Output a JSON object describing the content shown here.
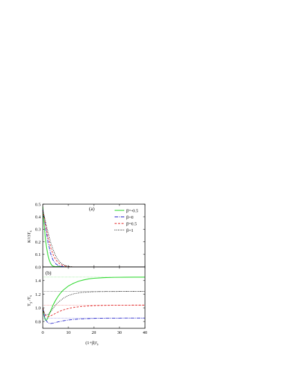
{
  "chart_data": [
    {
      "type": "line",
      "panel_label": "(a)",
      "ylabel": "K²/3T",
      "ylabel_sub": "s",
      "xlim": [
        0,
        40
      ],
      "ylim": [
        0,
        0.5
      ],
      "xticks": [
        0,
        10,
        20,
        30,
        40
      ],
      "yticks": [
        "0.0",
        "0.1",
        "0.2",
        "0.3",
        "0.4",
        "0.5"
      ],
      "legend_position": "top-right",
      "series": [
        {
          "name": "β=-0.5",
          "color": "#2ed92e",
          "dash": "",
          "x": [
            0,
            0.5,
            1,
            1.5,
            2,
            2.5,
            3,
            3.5,
            4,
            5,
            6,
            7,
            8,
            10,
            40
          ],
          "y": [
            0.48,
            0.34,
            0.23,
            0.15,
            0.095,
            0.055,
            0.03,
            0.014,
            0.006,
            0.002,
            0.004,
            0.003,
            0.001,
            0,
            0
          ]
        },
        {
          "name": "β=0",
          "color": "#1f1fc8",
          "dash": "5,1.5,1,1.5",
          "x": [
            0,
            0.5,
            1,
            1.5,
            2,
            3,
            4,
            5,
            6,
            7,
            8,
            9,
            10,
            12,
            40
          ],
          "y": [
            0.46,
            0.4,
            0.33,
            0.26,
            0.2,
            0.11,
            0.055,
            0.026,
            0.012,
            0.006,
            0.003,
            0.001,
            0,
            0,
            0
          ]
        },
        {
          "name": "β=0.5",
          "color": "#e02020",
          "dash": "3,2",
          "x": [
            0,
            0.5,
            1,
            1.5,
            2,
            3,
            4,
            5,
            6,
            7,
            8,
            9,
            10,
            12,
            40
          ],
          "y": [
            0.45,
            0.4,
            0.34,
            0.29,
            0.24,
            0.16,
            0.1,
            0.06,
            0.035,
            0.02,
            0.011,
            0.006,
            0.003,
            0,
            0
          ]
        },
        {
          "name": "β=1",
          "color": "#000000",
          "dash": "1,1.5",
          "x": [
            0,
            0.5,
            1,
            1.5,
            2,
            3,
            4,
            5,
            6,
            7,
            8,
            9,
            10,
            12,
            40
          ],
          "y": [
            0.45,
            0.41,
            0.37,
            0.32,
            0.28,
            0.2,
            0.14,
            0.09,
            0.055,
            0.033,
            0.019,
            0.01,
            0.005,
            0,
            0
          ]
        }
      ]
    },
    {
      "type": "line",
      "panel_label": "(b)",
      "ylabel": "T",
      "ylabel_sub": "y",
      "ylabel_den": "T",
      "ylabel_den_sub": "s",
      "xlabel": "(1+β)²",
      "xlabel_tail": "s",
      "xlim": [
        0,
        40
      ],
      "ylim": [
        0.7,
        1.6
      ],
      "xticks": [
        "0",
        "10",
        "20",
        "30",
        "40"
      ],
      "yticks": [
        "0.8",
        "1.0",
        "1.2",
        "1.4"
      ],
      "series": [
        {
          "name": "β=-0.5",
          "color": "#2ed92e",
          "dash": "",
          "asymptote": 1.45,
          "x": [
            0,
            0.5,
            1,
            1.5,
            2,
            3,
            4,
            5,
            6,
            7,
            8,
            10,
            12,
            14,
            16,
            18,
            20,
            24,
            28,
            32,
            36,
            40
          ],
          "y": [
            1.0,
            0.88,
            0.82,
            0.82,
            0.86,
            0.95,
            1.04,
            1.11,
            1.17,
            1.22,
            1.26,
            1.32,
            1.36,
            1.39,
            1.41,
            1.425,
            1.433,
            1.443,
            1.447,
            1.449,
            1.45,
            1.45
          ]
        },
        {
          "name": "β=0",
          "color": "#1f1fc8",
          "dash": "5,1.5,1,1.5",
          "asymptote": 0.85,
          "x": [
            0,
            0.5,
            1,
            2,
            3,
            4,
            5,
            6,
            8,
            10,
            12,
            15,
            20,
            25,
            30,
            35,
            40
          ],
          "y": [
            1.0,
            0.9,
            0.83,
            0.78,
            0.77,
            0.775,
            0.785,
            0.795,
            0.81,
            0.822,
            0.83,
            0.838,
            0.845,
            0.848,
            0.849,
            0.85,
            0.85
          ]
        },
        {
          "name": "β=0.5",
          "color": "#e02020",
          "dash": "3,2",
          "asymptote": 1.04,
          "x": [
            0,
            0.5,
            1,
            2,
            3,
            4,
            5,
            6,
            8,
            10,
            12,
            15,
            20,
            25,
            30,
            35,
            40
          ],
          "y": [
            1.0,
            0.93,
            0.89,
            0.87,
            0.88,
            0.9,
            0.92,
            0.94,
            0.97,
            0.99,
            1.005,
            1.02,
            1.032,
            1.037,
            1.039,
            1.04,
            1.04
          ]
        },
        {
          "name": "β=1",
          "color": "#000000",
          "dash": "1,1.5",
          "asymptote": 1.24,
          "x": [
            0,
            0.5,
            1,
            2,
            3,
            4,
            5,
            6,
            8,
            10,
            12,
            15,
            20,
            25,
            30,
            35,
            40
          ],
          "y": [
            1.0,
            0.93,
            0.9,
            0.9,
            0.94,
            0.99,
            1.04,
            1.08,
            1.14,
            1.18,
            1.205,
            1.225,
            1.236,
            1.239,
            1.24,
            1.24,
            1.24
          ]
        }
      ]
    }
  ]
}
